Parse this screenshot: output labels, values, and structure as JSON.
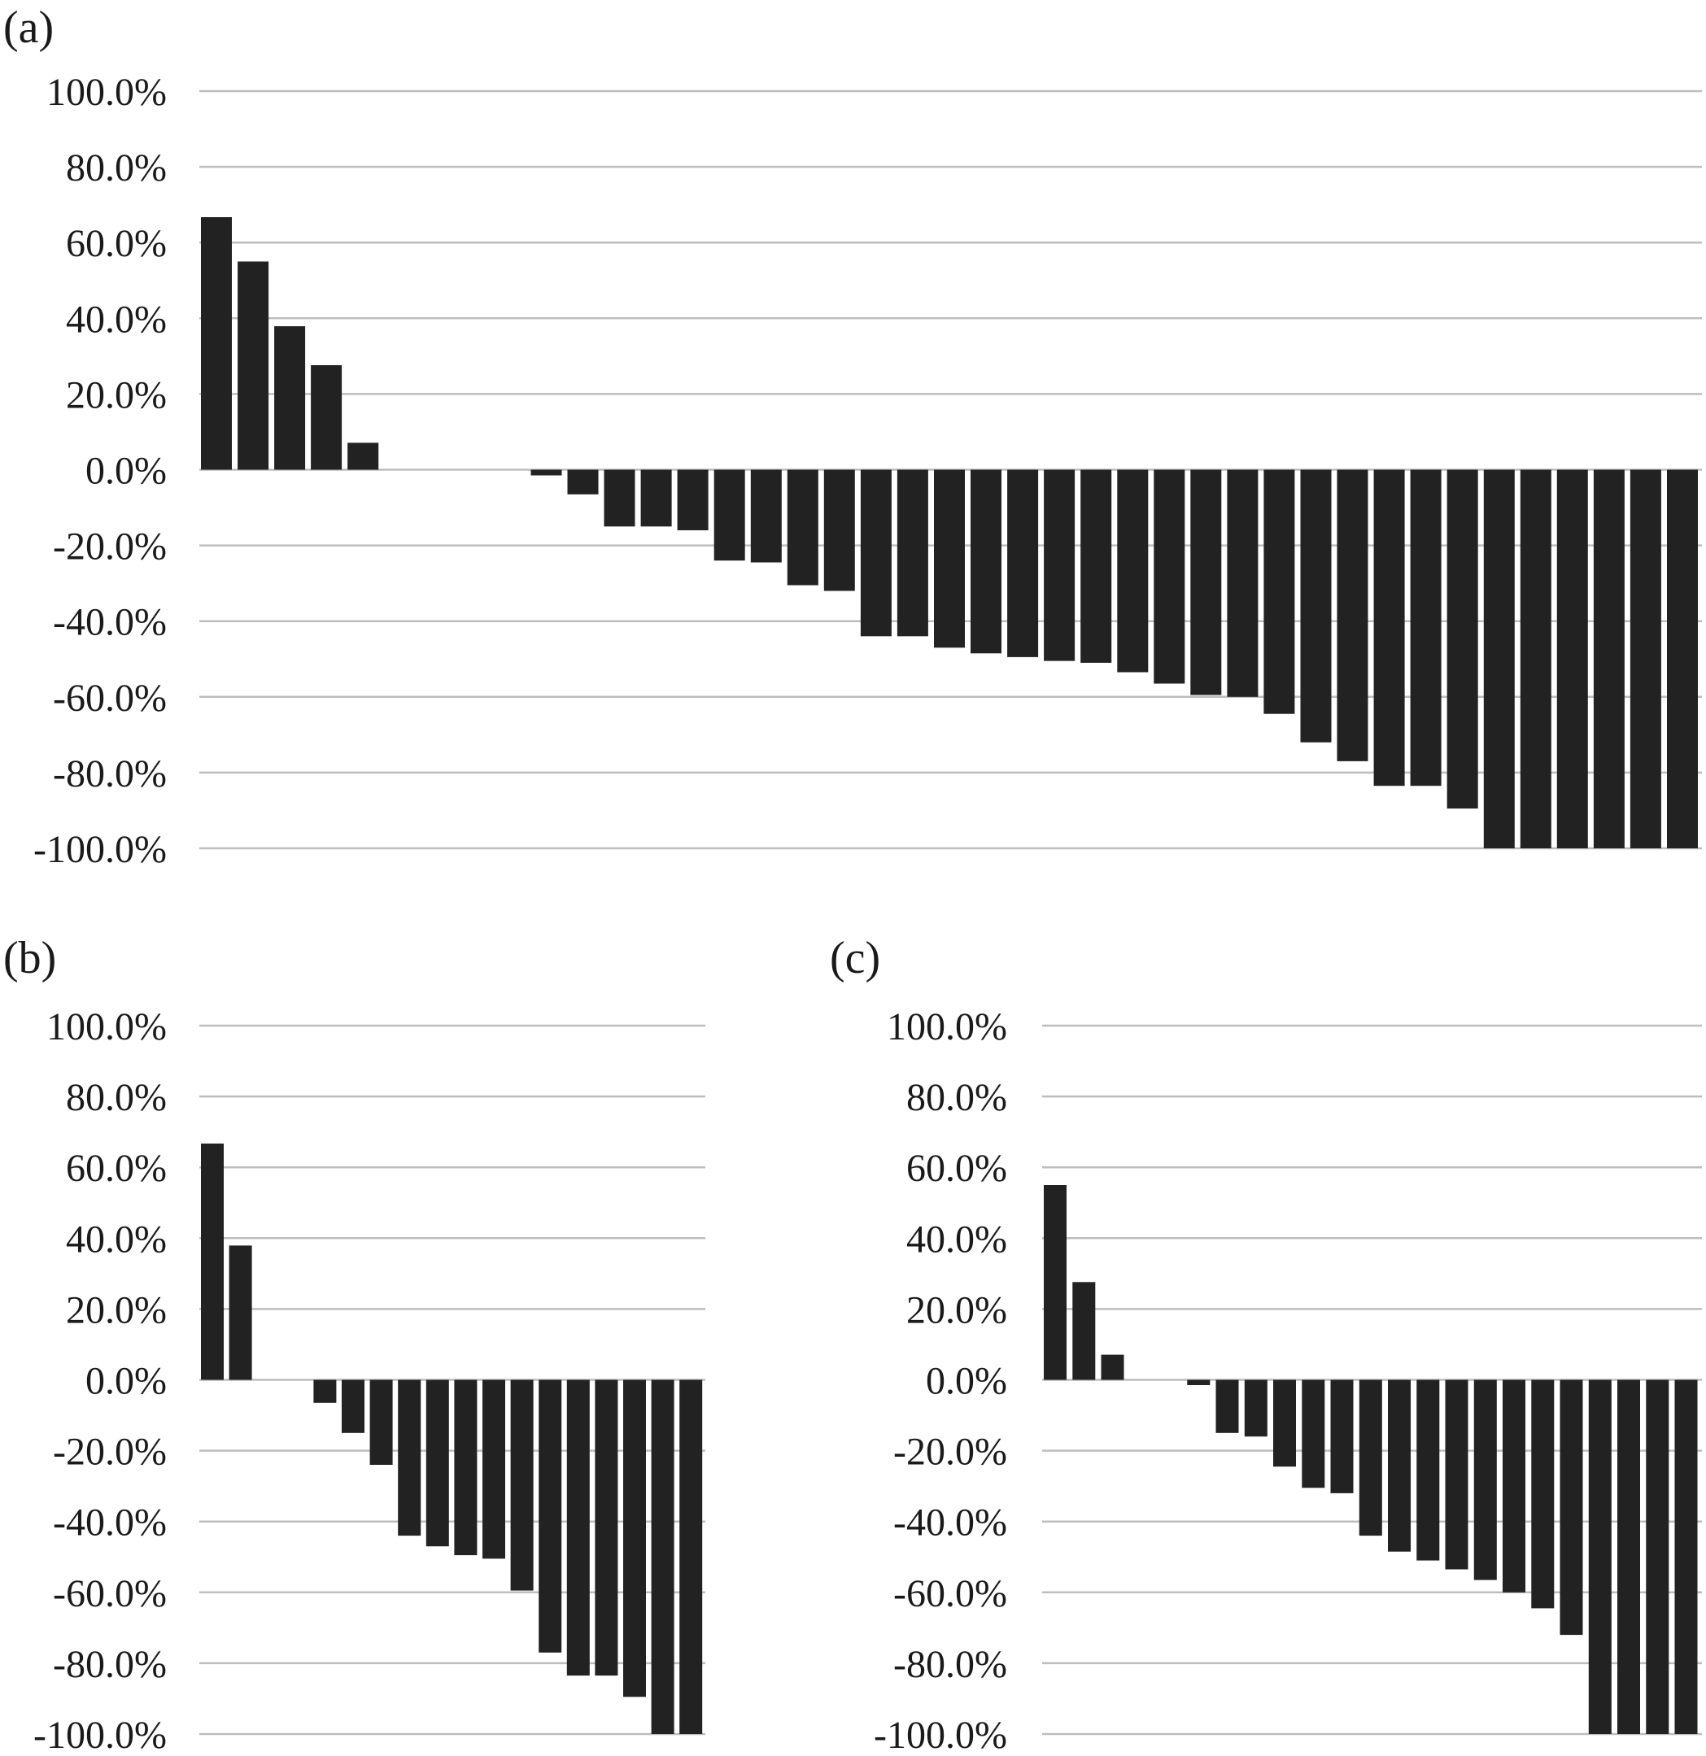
{
  "colors": {
    "bar": "#222222",
    "grid": "#bdbdbd",
    "text": "#1a1a1a",
    "background": "#ffffff"
  },
  "chart_data": [
    {
      "type": "bar",
      "panel_label": "(a)",
      "title": "",
      "xlabel": "",
      "ylabel": "",
      "ylim": [
        -100,
        100
      ],
      "yticks": [
        100,
        80,
        60,
        40,
        20,
        0,
        -20,
        -40,
        -60,
        -80,
        -100
      ],
      "ytick_labels": [
        "100.0%",
        "80.0%",
        "60.0%",
        "40.0%",
        "20.0%",
        "0.0%",
        "-20.0%",
        "-40.0%",
        "-60.0%",
        "-80.0%",
        "-100.0%"
      ],
      "grid": true,
      "values": [
        66.7,
        55.0,
        37.9,
        27.6,
        7.1,
        0,
        0,
        0,
        0,
        -1.5,
        -6.5,
        -15.0,
        -15.0,
        -16.0,
        -24.0,
        -24.5,
        -30.5,
        -32.0,
        -44.0,
        -44.0,
        -47.0,
        -48.5,
        -49.5,
        -50.5,
        -51.0,
        -53.5,
        -56.5,
        -59.5,
        -60.0,
        -64.5,
        -72.0,
        -77.0,
        -83.5,
        -83.5,
        -89.5,
        -100,
        -100,
        -100,
        -100,
        -100,
        -100
      ]
    },
    {
      "type": "bar",
      "panel_label": "(b)",
      "title": "",
      "xlabel": "",
      "ylabel": "",
      "ylim": [
        -100,
        100
      ],
      "yticks": [
        100,
        80,
        60,
        40,
        20,
        0,
        -20,
        -40,
        -60,
        -80,
        -100
      ],
      "ytick_labels": [
        "100.0%",
        "80.0%",
        "60.0%",
        "40.0%",
        "20.0%",
        "0.0%",
        "-20.0%",
        "-40.0%",
        "-60.0%",
        "-80.0%",
        "-100.0%"
      ],
      "grid": true,
      "values": [
        66.7,
        37.9,
        0,
        0,
        -6.5,
        -15.0,
        -24.0,
        -44.0,
        -47.0,
        -49.5,
        -50.5,
        -59.5,
        -77.0,
        -83.5,
        -83.5,
        -89.5,
        -100,
        -100
      ]
    },
    {
      "type": "bar",
      "panel_label": "(c)",
      "title": "",
      "xlabel": "",
      "ylabel": "",
      "ylim": [
        -100,
        100
      ],
      "yticks": [
        100,
        80,
        60,
        40,
        20,
        0,
        -20,
        -40,
        -60,
        -80,
        -100
      ],
      "ytick_labels": [
        "100.0%",
        "80.0%",
        "60.0%",
        "40.0%",
        "20.0%",
        "0.0%",
        "-20.0%",
        "-40.0%",
        "-60.0%",
        "-80.0%",
        "-100.0%"
      ],
      "grid": true,
      "values": [
        55.0,
        27.6,
        7.1,
        0,
        0,
        -1.5,
        -15.0,
        -16.0,
        -24.5,
        -30.5,
        -32.0,
        -44.0,
        -48.5,
        -51.0,
        -53.5,
        -56.5,
        -60.0,
        -64.5,
        -72.0,
        -100,
        -100,
        -100,
        -100
      ]
    }
  ]
}
